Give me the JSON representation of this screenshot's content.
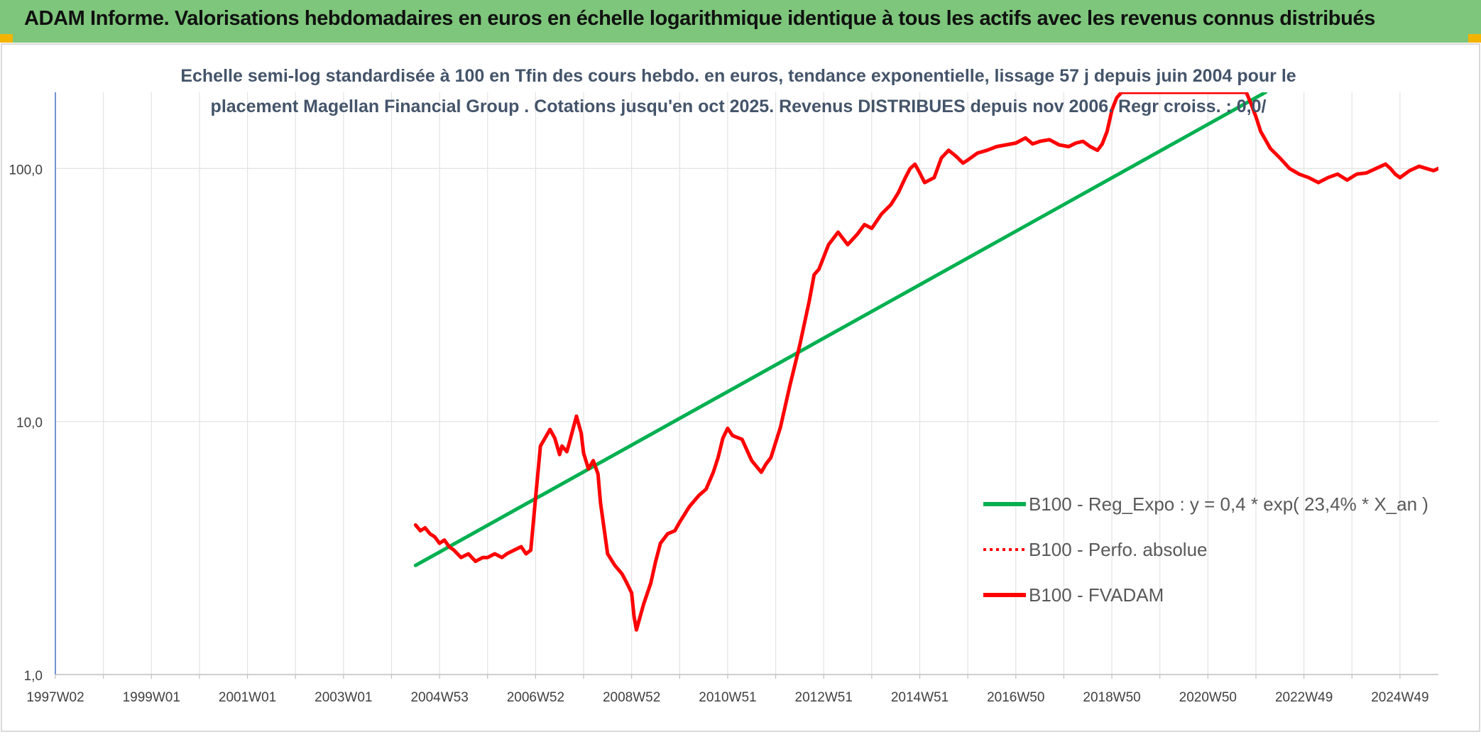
{
  "banner": {
    "title": "ADAM Informe. Valorisations hebdomadaires en euros en échelle logarithmique identique à tous les actifs avec les revenus connus distribués",
    "background": "#7dc67b",
    "corner_color": "#f2b400"
  },
  "chart_data": {
    "type": "line",
    "title_lines": [
      "Echelle semi-log standardisée à 100 en Tfin des cours hebdo. en euros, tendance exponentielle, lissage 57 j depuis juin 2004 pour le",
      "placement Magellan Financial Group . Cotations jusqu'en oct 2025. Revenus DISTRIBUES depuis nov 2006. Regr croiss. : 0,0/"
    ],
    "y_scale": "log",
    "ylim": [
      1,
      200
    ],
    "y_ticks": [
      {
        "value": 1,
        "label": "1,0"
      },
      {
        "value": 10,
        "label": "10,0"
      },
      {
        "value": 100,
        "label": "100,0"
      }
    ],
    "xlim": [
      1997.0,
      2025.8
    ],
    "x_ticks": [
      {
        "value": 1997.0,
        "label": "1997W02"
      },
      {
        "value": 1999.0,
        "label": "1999W01"
      },
      {
        "value": 2001.0,
        "label": "2001W01"
      },
      {
        "value": 2003.0,
        "label": "2003W01"
      },
      {
        "value": 2005.0,
        "label": "2004W53"
      },
      {
        "value": 2007.0,
        "label": "2006W52"
      },
      {
        "value": 2009.0,
        "label": "2008W52"
      },
      {
        "value": 2011.0,
        "label": "2010W51"
      },
      {
        "value": 2013.0,
        "label": "2012W51"
      },
      {
        "value": 2015.0,
        "label": "2014W51"
      },
      {
        "value": 2017.0,
        "label": "2016W50"
      },
      {
        "value": 2019.0,
        "label": "2018W50"
      },
      {
        "value": 2021.0,
        "label": "2020W50"
      },
      {
        "value": 2023.0,
        "label": "2022W49"
      },
      {
        "value": 2025.0,
        "label": "2024W49"
      }
    ],
    "grid": true,
    "legend_position": "bottom-right",
    "series": [
      {
        "name": "B100 - Reg_Expo : y = 0,4 * exp( 23,4% * X_an )",
        "color": "#00b050",
        "style": "solid",
        "x": [
          2004.5,
          2022.2
        ],
        "y": [
          2.7,
          200
        ]
      },
      {
        "name": "B100 - Perfo. absolue",
        "color": "#ff0000",
        "style": "dotted",
        "x": [],
        "y": []
      },
      {
        "name": "B100 - FVADAM",
        "color": "#ff0000",
        "style": "solid",
        "x": [
          2004.5,
          2004.6,
          2004.7,
          2004.8,
          2004.9,
          2005.0,
          2005.1,
          2005.2,
          2005.3,
          2005.45,
          2005.6,
          2005.75,
          2005.9,
          2006.0,
          2006.15,
          2006.3,
          2006.4,
          2006.55,
          2006.7,
          2006.8,
          2006.9,
          2007.0,
          2007.1,
          2007.3,
          2007.4,
          2007.5,
          2007.55,
          2007.65,
          2007.7,
          2007.85,
          2007.95,
          2008.0,
          2008.1,
          2008.2,
          2008.3,
          2008.35,
          2008.5,
          2008.65,
          2008.8,
          2008.9,
          2009.0,
          2009.05,
          2009.1,
          2009.25,
          2009.4,
          2009.5,
          2009.6,
          2009.75,
          2009.9,
          2010.0,
          2010.2,
          2010.4,
          2010.55,
          2010.7,
          2010.8,
          2010.9,
          2011.0,
          2011.1,
          2011.3,
          2011.5,
          2011.7,
          2011.8,
          2011.9,
          2012.1,
          2012.3,
          2012.5,
          2012.7,
          2012.8,
          2012.9,
          2013.1,
          2013.3,
          2013.5,
          2013.7,
          2013.85,
          2014.0,
          2014.2,
          2014.4,
          2014.55,
          2014.7,
          2014.8,
          2014.9,
          2015.0,
          2015.1,
          2015.3,
          2015.45,
          2015.6,
          2015.75,
          2015.9,
          2016.0,
          2016.2,
          2016.4,
          2016.6,
          2016.8,
          2017.0,
          2017.2,
          2017.35,
          2017.5,
          2017.7,
          2017.9,
          2018.1,
          2018.25,
          2018.4,
          2018.55,
          2018.7,
          2018.8,
          2018.9,
          2019.0,
          2019.1,
          2019.2,
          2019.3,
          2019.45,
          2019.7,
          2020.0,
          2020.3,
          2020.6,
          2020.9,
          2021.2,
          2021.5,
          2021.75,
          2021.8,
          2021.9,
          2022.0,
          2022.1,
          2022.3,
          2022.5,
          2022.7,
          2022.9,
          2023.1,
          2023.3,
          2023.5,
          2023.7,
          2023.9,
          2024.1,
          2024.3,
          2024.5,
          2024.7,
          2024.8,
          2024.9,
          2025.0,
          2025.2,
          2025.4,
          2025.55,
          2025.7,
          2025.8
        ],
        "y": [
          3.9,
          3.7,
          3.8,
          3.6,
          3.5,
          3.3,
          3.4,
          3.2,
          3.1,
          2.9,
          3.0,
          2.8,
          2.9,
          2.9,
          3.0,
          2.9,
          3.0,
          3.1,
          3.2,
          3.0,
          3.1,
          5.0,
          8.0,
          9.3,
          8.6,
          7.4,
          8.0,
          7.6,
          8.2,
          10.5,
          9.0,
          7.5,
          6.5,
          7.0,
          6.2,
          4.8,
          3.0,
          2.7,
          2.5,
          2.3,
          2.1,
          1.7,
          1.5,
          1.9,
          2.3,
          2.8,
          3.3,
          3.6,
          3.7,
          4.0,
          4.6,
          5.1,
          5.4,
          6.3,
          7.2,
          8.6,
          9.4,
          8.8,
          8.5,
          7.0,
          6.3,
          6.8,
          7.2,
          9.5,
          14.0,
          20.0,
          30.0,
          38.0,
          40.0,
          50.0,
          56.0,
          50.0,
          55.0,
          60.0,
          58.0,
          66.0,
          72.0,
          80.0,
          92.0,
          100.0,
          104.0,
          96.0,
          88.0,
          92.0,
          110.0,
          118.0,
          112.0,
          105.0,
          108.0,
          115.0,
          118.0,
          122.0,
          124.0,
          126.0,
          132.0,
          125.0,
          128.0,
          130.0,
          124.0,
          122.0,
          126.0,
          128.0,
          122.0,
          118.0,
          125.0,
          140.0,
          170.0,
          190.0,
          200.0,
          200.0,
          200.0,
          200.0,
          200.0,
          200.0,
          200.0,
          200.0,
          200.0,
          200.0,
          200.0,
          200.0,
          180.0,
          160.0,
          140.0,
          120.0,
          110.0,
          100.0,
          95.0,
          92.0,
          88.0,
          92.0,
          95.0,
          90.0,
          95.0,
          96.0,
          100.0,
          104.0,
          100.0,
          95.0,
          92.0,
          98.0,
          102.0,
          100.0,
          98.0,
          100.0
        ]
      }
    ]
  }
}
